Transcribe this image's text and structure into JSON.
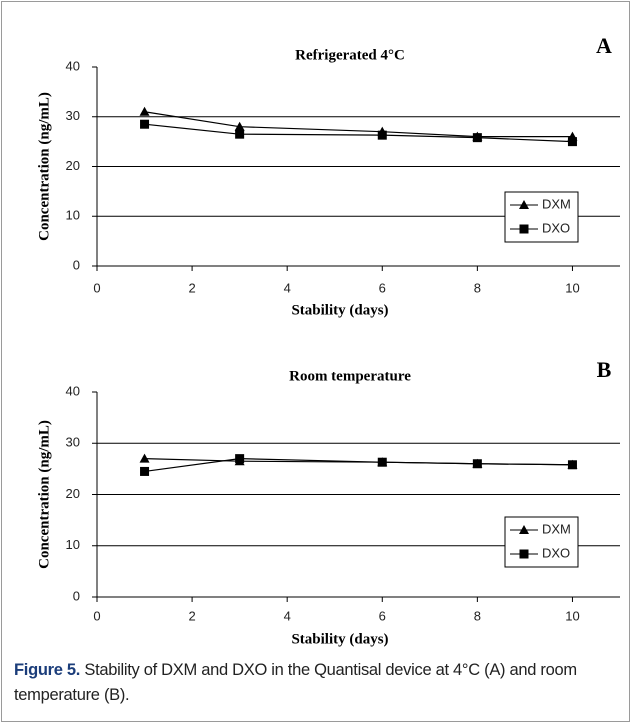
{
  "chart_data": [
    {
      "type": "line",
      "title": "Refrigerated 4°C",
      "panel_label": "A",
      "x_label": "Stability (days)",
      "y_label": "Concentration (ng/mL)",
      "xlim": [
        0,
        11
      ],
      "xticks": [
        0,
        2,
        4,
        6,
        8,
        10
      ],
      "ylim": [
        0,
        40
      ],
      "yticks": [
        0,
        10,
        20,
        30,
        40
      ],
      "grid": true,
      "legend": "lower right",
      "series": [
        {
          "name": "DXM",
          "color": "#000000",
          "marker": "triangle",
          "x": [
            1,
            3,
            6,
            8,
            10
          ],
          "values": [
            31,
            28,
            27,
            26,
            26
          ]
        },
        {
          "name": "DXO",
          "color": "#000000",
          "marker": "square",
          "x": [
            1,
            3,
            6,
            8,
            10
          ],
          "values": [
            28.5,
            26.5,
            26.3,
            25.8,
            25
          ]
        }
      ]
    },
    {
      "type": "line",
      "title": "Room temperature",
      "panel_label": "B",
      "x_label": "Stability (days)",
      "y_label": "Concentration (ng/mL)",
      "xlim": [
        0,
        11
      ],
      "xticks": [
        0,
        2,
        4,
        6,
        8,
        10
      ],
      "ylim": [
        0,
        40
      ],
      "yticks": [
        0,
        10,
        20,
        30,
        40
      ],
      "grid": true,
      "legend": "lower right",
      "series": [
        {
          "name": "DXM",
          "color": "#000000",
          "marker": "triangle",
          "x": [
            1,
            3,
            6,
            8,
            10
          ],
          "values": [
            27,
            26.5,
            26.3,
            26,
            25.8
          ]
        },
        {
          "name": "DXO",
          "color": "#000000",
          "marker": "square",
          "x": [
            1,
            3,
            6,
            8,
            10
          ],
          "values": [
            24.5,
            27,
            26.3,
            26,
            25.8
          ]
        }
      ]
    }
  ],
  "caption": {
    "label": "Figure 5.",
    "text": "Stability of DXM and DXO in the Quantisal device at 4°C (A) and room temperature (B)."
  }
}
